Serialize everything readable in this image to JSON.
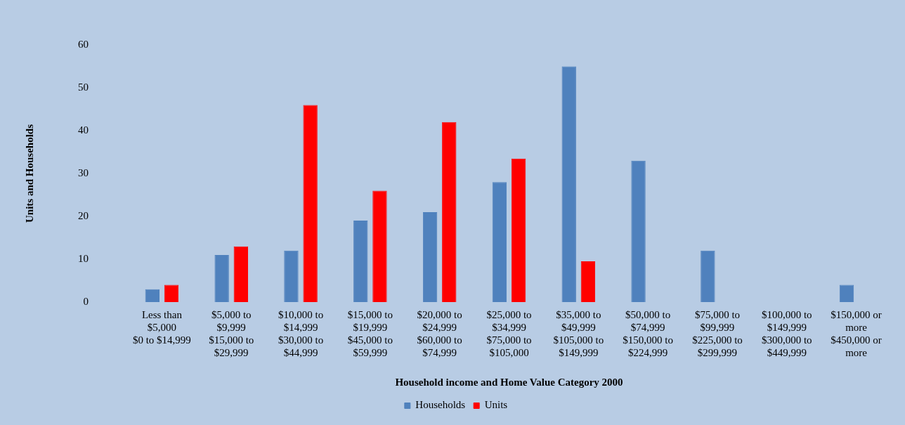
{
  "chart_data": {
    "type": "bar",
    "xlabel": "Household income and Home Value Category 2000",
    "ylabel": "Units and Households",
    "categories": [
      "Less than\n$5,000\n$0 to $14,999",
      "$5,000 to\n$9,999\n$15,000 to\n$29,999",
      "$10,000 to\n$14,999\n$30,000 to\n$44,999",
      "$15,000 to\n$19,999\n$45,000 to\n$59,999",
      "$20,000 to\n$24,999\n$60,000 to\n$74,999",
      "$25,000 to\n$34,999\n$75,000 to\n$105,000",
      "$35,000 to\n$49,999\n$105,000 to\n$149,999",
      "$50,000 to\n$74,999\n$150,000 to\n$224,999",
      "$75,000 to\n$99,999\n$225,000 to\n$299,999",
      "$100,000 to\n$149,999\n$300,000 to\n$449,999",
      "$150,000 or\nmore\n$450,000 or\nmore"
    ],
    "series": [
      {
        "name": "Households",
        "color": "#4f81bd",
        "values": [
          3,
          11,
          12,
          19,
          21,
          28,
          55,
          33,
          12,
          0,
          4
        ]
      },
      {
        "name": "Units",
        "color": "#ff0000",
        "values": [
          4,
          13,
          46,
          26,
          42,
          33.5,
          9.5,
          0,
          0,
          0,
          0
        ]
      }
    ],
    "ylim": [
      0,
      60
    ],
    "yticks": [
      0,
      10,
      20,
      30,
      40,
      50,
      60
    ],
    "grid": false,
    "legend": "bottom"
  }
}
